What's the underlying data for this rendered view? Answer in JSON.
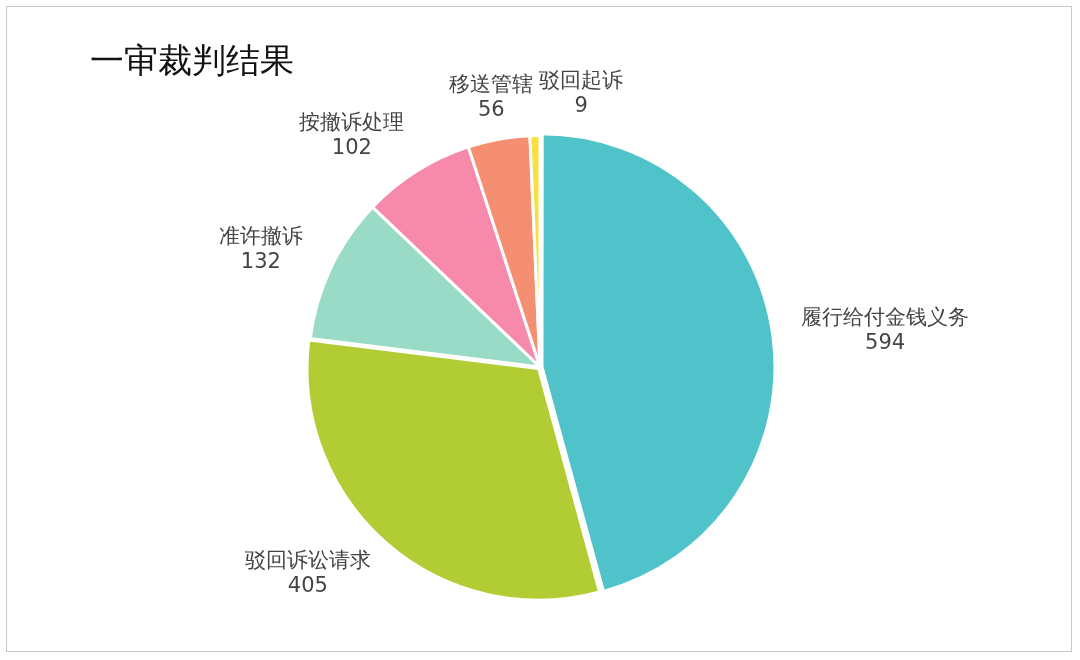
{
  "chart_data": {
    "type": "pie",
    "title": "一审裁判结果",
    "categories": [
      "履行给付金钱义务",
      "驳回诉讼请求",
      "准许撤诉",
      "按撤诉处理",
      "移送管辖",
      "驳回起诉"
    ],
    "values": [
      594,
      405,
      132,
      102,
      56,
      9
    ],
    "colors": [
      "#4fc3c9",
      "#b2cd34",
      "#9adbc7",
      "#f78aab",
      "#f58f72",
      "#f9e040"
    ],
    "data_labels": true,
    "legend": false
  }
}
